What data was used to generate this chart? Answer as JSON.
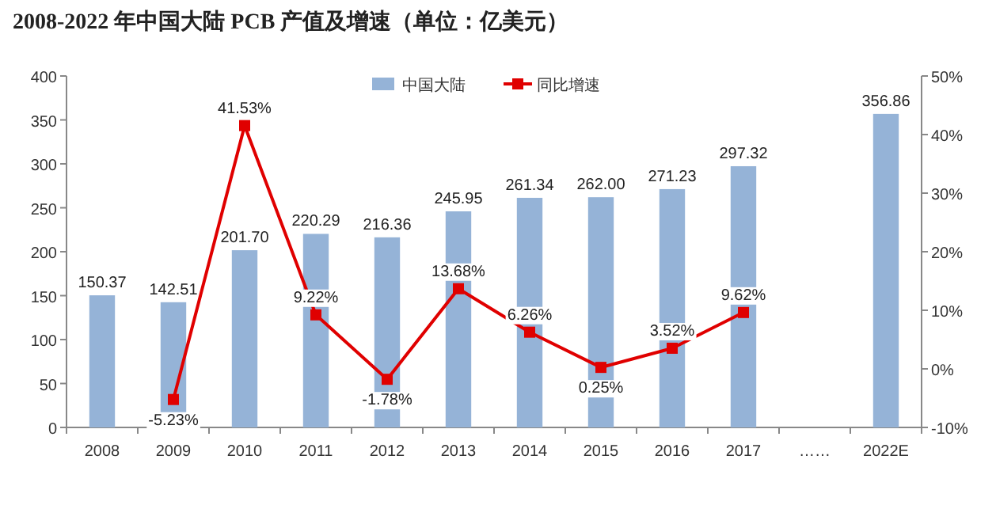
{
  "chart_data": {
    "type": "bar",
    "title": "2008-2022 年中国大陆 PCB 产值及增速（单位：亿美元）",
    "categories": [
      "2008",
      "2009",
      "2010",
      "2011",
      "2012",
      "2013",
      "2014",
      "2015",
      "2016",
      "2017",
      "……",
      "2022E"
    ],
    "series": [
      {
        "name": "中国大陆",
        "color": "#95b3d7",
        "values": [
          150.37,
          142.51,
          201.7,
          220.29,
          216.36,
          245.95,
          261.34,
          262.0,
          271.23,
          297.32,
          null,
          356.86
        ],
        "value_labels": [
          "150.37",
          "142.51",
          "201.70",
          "220.29",
          "216.36",
          "245.95",
          "261.34",
          "262.00",
          "271.23",
          "297.32",
          null,
          "356.86"
        ]
      },
      {
        "name": "同比增速",
        "type": "line",
        "axis": "y2",
        "color": "#e00000",
        "marker": "square",
        "values": [
          null,
          -5.23,
          41.53,
          9.22,
          -1.78,
          13.68,
          6.26,
          0.25,
          3.52,
          9.62,
          null,
          null
        ],
        "value_labels": [
          null,
          "-5.23%",
          "41.53%",
          "9.22%",
          "-1.78%",
          "13.68%",
          "6.26%",
          "0.25%",
          "3.52%",
          "9.62%",
          null,
          null
        ]
      }
    ],
    "ylim": [
      0,
      400
    ],
    "yticks": [
      0,
      50,
      100,
      150,
      200,
      250,
      300,
      350,
      400
    ],
    "y2lim": [
      -10,
      50
    ],
    "y2ticks": [
      {
        "value": -10,
        "label": "-10%"
      },
      {
        "value": 0,
        "label": "0%"
      },
      {
        "value": 10,
        "label": "10%"
      },
      {
        "value": 20,
        "label": "20%"
      },
      {
        "value": 30,
        "label": "30%"
      },
      {
        "value": 40,
        "label": "40%"
      },
      {
        "value": 50,
        "label": "50%"
      }
    ],
    "legend": "top",
    "grid": false
  }
}
